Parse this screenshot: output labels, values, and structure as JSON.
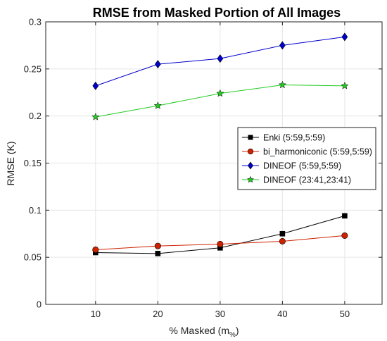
{
  "chart_data": {
    "type": "line",
    "title": "RMSE from Masked Portion of All Images",
    "xlabel": "% Masked (m",
    "xlabel_subscript": "%",
    "xlabel_suffix": ")",
    "ylabel": "RMSE (K)",
    "x": [
      10,
      20,
      30,
      40,
      50
    ],
    "xticks": [
      "10",
      "20",
      "30",
      "40",
      "50"
    ],
    "yticks": [
      "0",
      "0.05",
      "0.1",
      "0.15",
      "0.2",
      "0.25",
      "0.3"
    ],
    "ytick_values": [
      0,
      0.05,
      0.1,
      0.15,
      0.2,
      0.25,
      0.3
    ],
    "xlim": [
      2,
      56
    ],
    "ylim": [
      0,
      0.3
    ],
    "grid": true,
    "legend_position": "right-center",
    "series": [
      {
        "name": "Enki (5:59,5:59)",
        "color": "#000000",
        "marker": "square",
        "values": [
          0.055,
          0.054,
          0.06,
          0.075,
          0.094
        ]
      },
      {
        "name": "bi_harmoniconic (5:59,5:59)",
        "color": "#cc2200",
        "marker": "circle",
        "values": [
          0.058,
          0.062,
          0.064,
          0.067,
          0.073
        ]
      },
      {
        "name": "DINEOF (5:59,5:59)",
        "color": "#0000cc",
        "marker": "diamond",
        "values": [
          0.232,
          0.255,
          0.261,
          0.275,
          0.284
        ]
      },
      {
        "name": "DINEOF (23:41,23:41)",
        "color": "#22cc22",
        "marker": "star",
        "values": [
          0.199,
          0.211,
          0.224,
          0.233,
          0.232
        ]
      }
    ]
  }
}
